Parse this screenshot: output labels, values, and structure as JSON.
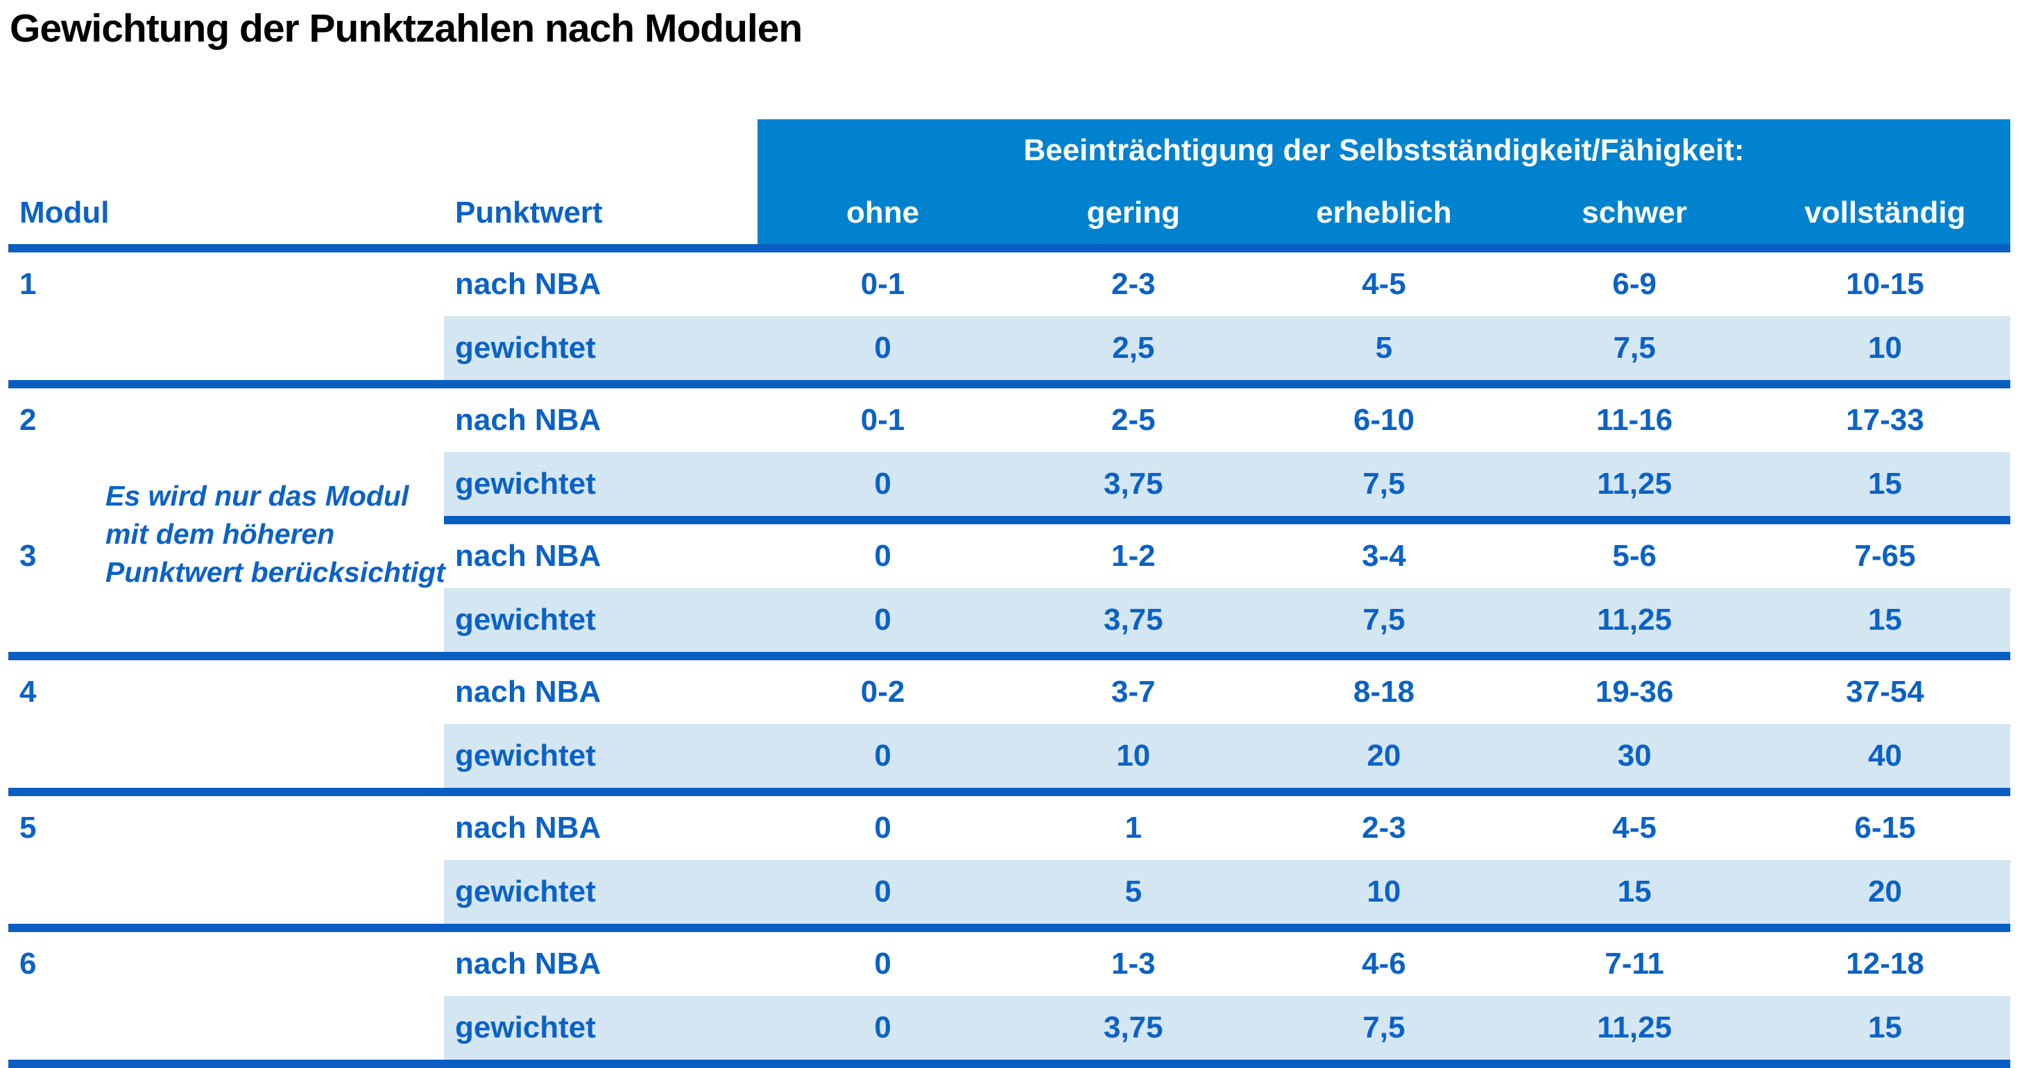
{
  "title": "Gewichtung der Punktzahlen nach Modulen",
  "table": {
    "columns": {
      "modul": "Modul",
      "punktwert": "Punktwert"
    },
    "impairment_header": "Beeinträchtigung der Selbstständigkeit/Fähigkeit:",
    "levels": [
      "ohne",
      "gering",
      "erheblich",
      "schwer",
      "vollständig"
    ],
    "row_labels": {
      "nba": "nach NBA",
      "weighted": "gewichtet"
    },
    "note_lines": [
      "Es wird nur das Modul",
      "mit dem höheren",
      "Punktwert berücksichtigt"
    ],
    "modules": [
      {
        "number": "1",
        "nba": [
          "0-1",
          "2-3",
          "4-5",
          "6-9",
          "10-15"
        ],
        "weighted": [
          "0",
          "2,5",
          "5",
          "7,5",
          "10"
        ]
      },
      {
        "number": "2",
        "nba": [
          "0-1",
          "2-5",
          "6-10",
          "11-16",
          "17-33"
        ],
        "weighted": [
          "0",
          "3,75",
          "7,5",
          "11,25",
          "15"
        ]
      },
      {
        "number": "3",
        "nba": [
          "0",
          "1-2",
          "3-4",
          "5-6",
          "7-65"
        ],
        "weighted": [
          "0",
          "3,75",
          "7,5",
          "11,25",
          "15"
        ]
      },
      {
        "number": "4",
        "nba": [
          "0-2",
          "3-7",
          "8-18",
          "19-36",
          "37-54"
        ],
        "weighted": [
          "0",
          "10",
          "20",
          "30",
          "40"
        ]
      },
      {
        "number": "5",
        "nba": [
          "0",
          "1",
          "2-3",
          "4-5",
          "6-15"
        ],
        "weighted": [
          "0",
          "5",
          "10",
          "15",
          "20"
        ]
      },
      {
        "number": "6",
        "nba": [
          "0",
          "1-3",
          "4-6",
          "7-11",
          "12-18"
        ],
        "weighted": [
          "0",
          "3,75",
          "7,5",
          "11,25",
          "15"
        ]
      }
    ]
  },
  "colors": {
    "header_bg": "#0082cf",
    "weighted_row_bg": "#d5e6f3",
    "rule": "#0a5ec2",
    "text_blue": "#0b62c6",
    "header_text": "#ffffff",
    "title_text": "#000000"
  }
}
